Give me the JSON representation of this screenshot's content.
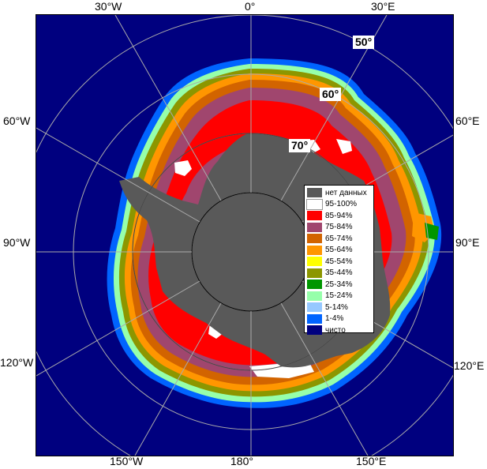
{
  "map": {
    "edge_labels": {
      "top_30w": "30°W",
      "top_0": "0°",
      "top_30e": "30°E",
      "left_60w": "60°W",
      "left_90w": "90°W",
      "left_120w": "120°W",
      "right_60e": "60°E",
      "right_90e": "90°E",
      "right_120e": "120°E",
      "bottom_150w": "150°W",
      "bottom_180": "180°",
      "bottom_150e": "150°E"
    },
    "lat_labels": {
      "lat50": "50°",
      "lat60": "60°",
      "lat70": "70°"
    },
    "colors": {
      "ocean": "#00007f",
      "land": "#595959",
      "grid": "#aaaaaa"
    }
  },
  "legend": [
    {
      "label": "нет данных",
      "color": "#595959"
    },
    {
      "label": "95-100%",
      "color": "#ffffff"
    },
    {
      "label": "85-94%",
      "color": "#ff0000"
    },
    {
      "label": "75-84%",
      "color": "#a0466e"
    },
    {
      "label": "65-74%",
      "color": "#d26400"
    },
    {
      "label": "55-64%",
      "color": "#ff9600"
    },
    {
      "label": "45-54%",
      "color": "#ffff00"
    },
    {
      "label": "35-44%",
      "color": "#8c9600"
    },
    {
      "label": "25-34%",
      "color": "#009600"
    },
    {
      "label": "15-24%",
      "color": "#96ffaa"
    },
    {
      "label": "5-14%",
      "color": "#96c8ff"
    },
    {
      "label": "1-4%",
      "color": "#0064ff"
    },
    {
      "label": "чисто",
      "color": "#00007f"
    }
  ]
}
